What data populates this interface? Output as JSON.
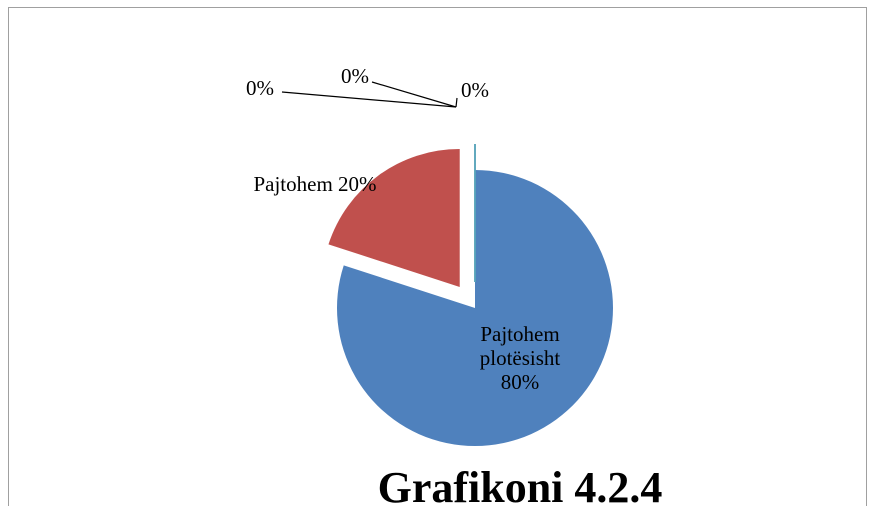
{
  "chart_data": {
    "type": "pie",
    "title": "Grafikoni 4.2.4",
    "categories": [
      "Pajtohem plotësisht",
      "Pajtohem",
      null,
      null,
      null
    ],
    "values": [
      80,
      20,
      0,
      0,
      0
    ],
    "value_labels": [
      "80%",
      "20%",
      "0%",
      "0%",
      "0%"
    ],
    "colors": [
      "#4f81bd",
      "#c0504d",
      "#9bbb59",
      "#8064a2",
      "#4bacc6"
    ]
  }
}
